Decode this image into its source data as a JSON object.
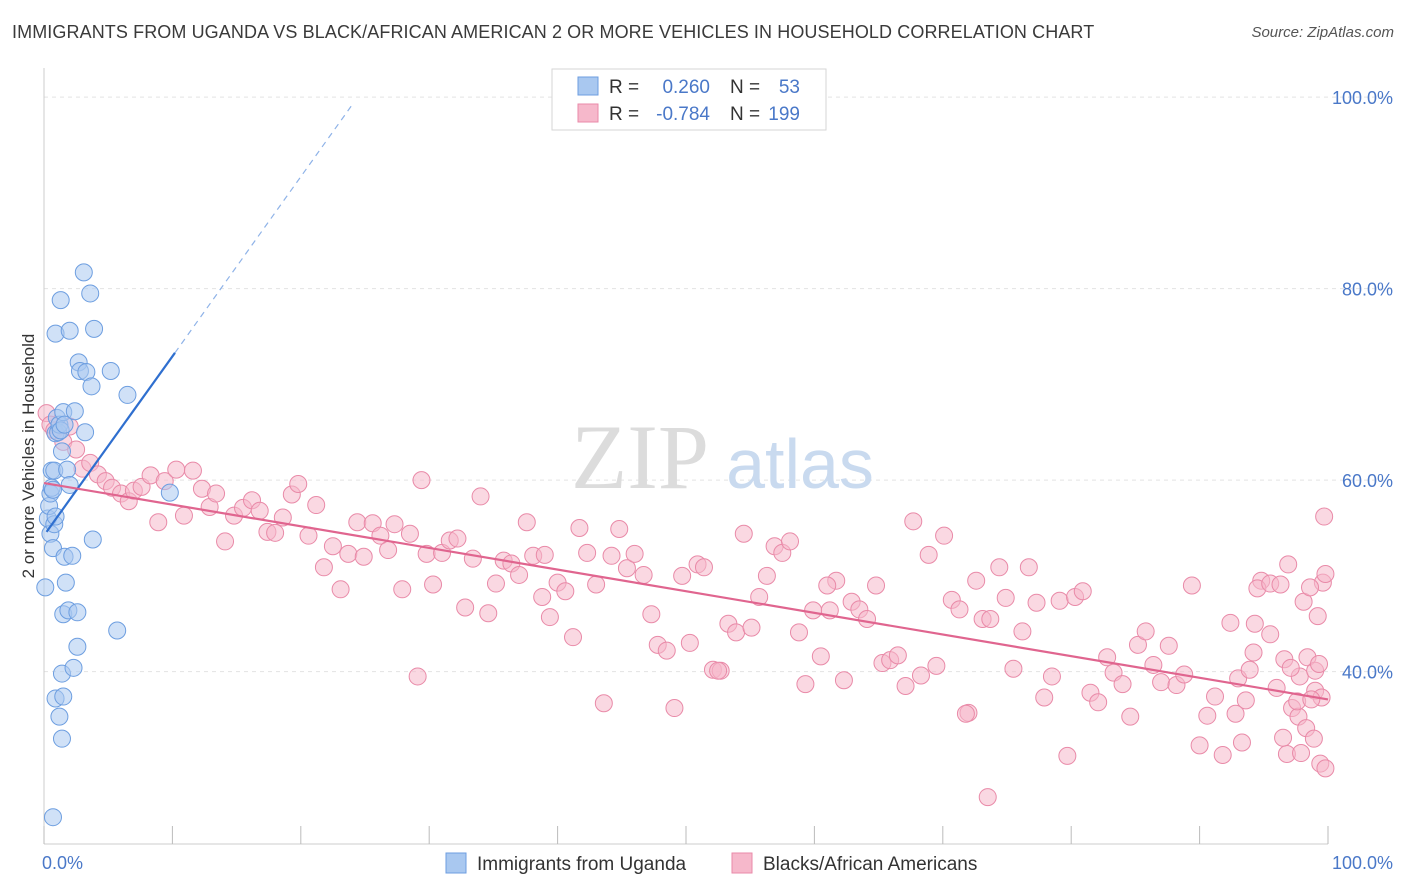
{
  "title": "IMMIGRANTS FROM UGANDA VS BLACK/AFRICAN AMERICAN 2 OR MORE VEHICLES IN HOUSEHOLD CORRELATION CHART",
  "source": "Source: ZipAtlas.com",
  "watermark": {
    "zip": "ZIP",
    "atlas": "atlas"
  },
  "colors": {
    "blue_fill": "#a9c8f0",
    "blue_stroke": "#6d9ee0",
    "blue_line": "#2f6fcf",
    "pink_fill": "#f6b8cb",
    "pink_stroke": "#e98aa8",
    "pink_line": "#e0658f",
    "axis_text": "#4a78c8",
    "grid": "#e3e3e3"
  },
  "legend": {
    "rows": [
      {
        "series": "blue",
        "r_label": "R =",
        "r_value": "0.260",
        "n_label": "N =",
        "n_value": "53"
      },
      {
        "series": "pink",
        "r_label": "R =",
        "r_value": "-0.784",
        "n_label": "N =",
        "n_value": "199"
      }
    ]
  },
  "bottom_legend": [
    "Immigrants from Uganda",
    "Blacks/African Americans"
  ],
  "chart_data": {
    "type": "scatter",
    "title": "IMMIGRANTS FROM UGANDA VS BLACK/AFRICAN AMERICAN 2 OR MORE VEHICLES IN HOUSEHOLD CORRELATION CHART",
    "xlabel": "",
    "ylabel": "2 or more Vehicles in Household",
    "xlim": [
      0,
      100
    ],
    "ylim": [
      22,
      102
    ],
    "x_tick_labels": [
      {
        "value": 0,
        "label": "0.0%"
      },
      {
        "value": 100,
        "label": "100.0%"
      }
    ],
    "y_tick_labels": [
      {
        "value": 40,
        "label": "40.0%"
      },
      {
        "value": 60,
        "label": "60.0%"
      },
      {
        "value": 80,
        "label": "80.0%"
      },
      {
        "value": 100,
        "label": "100.0%"
      }
    ],
    "x_minor_ticks": [
      0,
      10,
      20,
      30,
      40,
      50,
      60,
      70,
      80,
      90,
      100
    ],
    "series": [
      {
        "name": "Immigrants from Uganda",
        "color": "blue",
        "r": 0.26,
        "n": 53,
        "trend": {
          "x0": 0.2,
          "y0": 54.6,
          "x1": 10.2,
          "y1": 73.3,
          "dash_x1": 24.0,
          "dash_y1": 99.2
        },
        "points": [
          [
            0.1,
            48.8
          ],
          [
            0.3,
            56.0
          ],
          [
            0.4,
            57.3
          ],
          [
            0.5,
            58.6
          ],
          [
            0.6,
            61.0
          ],
          [
            0.5,
            54.4
          ],
          [
            0.7,
            52.9
          ],
          [
            0.8,
            55.4
          ],
          [
            0.9,
            56.2
          ],
          [
            0.6,
            59.2
          ],
          [
            0.7,
            59.0
          ],
          [
            0.8,
            61.0
          ],
          [
            0.9,
            64.9
          ],
          [
            1.0,
            66.5
          ],
          [
            1.1,
            65.0
          ],
          [
            1.2,
            65.8
          ],
          [
            1.3,
            65.2
          ],
          [
            1.4,
            63.0
          ],
          [
            1.5,
            67.1
          ],
          [
            1.6,
            65.8
          ],
          [
            0.9,
            75.3
          ],
          [
            1.3,
            78.8
          ],
          [
            2.0,
            75.6
          ],
          [
            3.1,
            81.7
          ],
          [
            3.6,
            79.5
          ],
          [
            3.9,
            75.8
          ],
          [
            2.7,
            72.3
          ],
          [
            2.8,
            71.4
          ],
          [
            3.3,
            71.3
          ],
          [
            3.7,
            69.8
          ],
          [
            5.2,
            71.4
          ],
          [
            6.5,
            68.9
          ],
          [
            2.4,
            67.2
          ],
          [
            3.2,
            65.0
          ],
          [
            1.8,
            61.1
          ],
          [
            1.6,
            52.0
          ],
          [
            1.7,
            49.3
          ],
          [
            2.2,
            52.1
          ],
          [
            3.8,
            53.8
          ],
          [
            1.5,
            46.0
          ],
          [
            1.9,
            46.4
          ],
          [
            2.6,
            46.2
          ],
          [
            2.6,
            42.6
          ],
          [
            1.4,
            39.8
          ],
          [
            2.3,
            40.4
          ],
          [
            0.9,
            37.2
          ],
          [
            1.5,
            37.4
          ],
          [
            1.2,
            35.3
          ],
          [
            1.4,
            33.0
          ],
          [
            0.7,
            24.8
          ],
          [
            5.7,
            44.3
          ],
          [
            9.8,
            58.7
          ],
          [
            2.0,
            59.5
          ]
        ]
      },
      {
        "name": "Blacks/African Americans",
        "color": "pink",
        "r": -0.784,
        "n": 199,
        "trend": {
          "x0": 0.0,
          "y0": 59.7,
          "x1": 100.0,
          "y1": 37.1
        },
        "points": [
          [
            0.2,
            67.0
          ],
          [
            0.5,
            65.8
          ],
          [
            0.8,
            65.2
          ],
          [
            1.5,
            64.0
          ],
          [
            2.0,
            65.6
          ],
          [
            2.5,
            63.2
          ],
          [
            3.0,
            61.2
          ],
          [
            3.6,
            61.8
          ],
          [
            4.2,
            60.6
          ],
          [
            4.8,
            59.9
          ],
          [
            5.3,
            59.2
          ],
          [
            6.0,
            58.6
          ],
          [
            6.6,
            57.8
          ],
          [
            7.0,
            58.9
          ],
          [
            7.6,
            59.3
          ],
          [
            8.3,
            60.5
          ],
          [
            8.9,
            55.6
          ],
          [
            9.4,
            59.9
          ],
          [
            10.3,
            61.1
          ],
          [
            10.9,
            56.3
          ],
          [
            11.6,
            61.0
          ],
          [
            12.3,
            59.1
          ],
          [
            12.9,
            57.2
          ],
          [
            13.4,
            58.6
          ],
          [
            14.1,
            53.6
          ],
          [
            14.8,
            56.3
          ],
          [
            15.5,
            57.1
          ],
          [
            16.2,
            57.9
          ],
          [
            16.8,
            56.8
          ],
          [
            17.4,
            54.6
          ],
          [
            18.0,
            54.5
          ],
          [
            18.6,
            56.1
          ],
          [
            19.3,
            58.5
          ],
          [
            19.8,
            59.6
          ],
          [
            20.6,
            54.2
          ],
          [
            21.2,
            57.4
          ],
          [
            21.8,
            50.9
          ],
          [
            22.5,
            53.1
          ],
          [
            23.1,
            48.6
          ],
          [
            23.7,
            52.3
          ],
          [
            24.4,
            55.6
          ],
          [
            24.9,
            52.0
          ],
          [
            25.6,
            55.5
          ],
          [
            26.2,
            54.2
          ],
          [
            26.8,
            52.7
          ],
          [
            27.3,
            55.4
          ],
          [
            27.9,
            48.6
          ],
          [
            28.5,
            54.4
          ],
          [
            29.1,
            39.5
          ],
          [
            29.8,
            52.3
          ],
          [
            30.3,
            49.1
          ],
          [
            31.0,
            52.4
          ],
          [
            31.6,
            53.7
          ],
          [
            32.2,
            53.9
          ],
          [
            32.8,
            46.7
          ],
          [
            33.4,
            51.8
          ],
          [
            34.0,
            58.3
          ],
          [
            34.6,
            46.1
          ],
          [
            35.2,
            49.2
          ],
          [
            35.8,
            51.6
          ],
          [
            36.4,
            51.3
          ],
          [
            37.0,
            50.1
          ],
          [
            37.6,
            55.6
          ],
          [
            38.1,
            52.1
          ],
          [
            38.8,
            47.8
          ],
          [
            39.4,
            45.7
          ],
          [
            40.0,
            49.3
          ],
          [
            40.6,
            48.4
          ],
          [
            41.2,
            43.6
          ],
          [
            41.7,
            55.0
          ],
          [
            42.3,
            52.4
          ],
          [
            43.0,
            49.1
          ],
          [
            43.6,
            36.7
          ],
          [
            44.2,
            52.1
          ],
          [
            44.8,
            54.9
          ],
          [
            45.4,
            50.8
          ],
          [
            46.0,
            52.3
          ],
          [
            46.7,
            50.1
          ],
          [
            47.3,
            46.0
          ],
          [
            47.8,
            42.8
          ],
          [
            48.5,
            42.2
          ],
          [
            49.1,
            36.2
          ],
          [
            49.7,
            50.0
          ],
          [
            50.3,
            43.0
          ],
          [
            50.9,
            51.2
          ],
          [
            51.4,
            50.9
          ],
          [
            52.1,
            40.2
          ],
          [
            52.7,
            40.1
          ],
          [
            53.3,
            45.0
          ],
          [
            53.9,
            44.1
          ],
          [
            54.5,
            54.4
          ],
          [
            55.1,
            44.6
          ],
          [
            55.7,
            47.8
          ],
          [
            56.3,
            50.0
          ],
          [
            56.9,
            53.1
          ],
          [
            57.5,
            52.4
          ],
          [
            58.1,
            53.6
          ],
          [
            58.8,
            44.1
          ],
          [
            59.3,
            38.7
          ],
          [
            59.9,
            46.4
          ],
          [
            60.5,
            41.6
          ],
          [
            61.2,
            46.4
          ],
          [
            61.7,
            49.5
          ],
          [
            62.3,
            39.1
          ],
          [
            62.9,
            47.3
          ],
          [
            63.5,
            46.5
          ],
          [
            64.1,
            45.5
          ],
          [
            64.8,
            49.0
          ],
          [
            65.3,
            40.9
          ],
          [
            65.9,
            41.2
          ],
          [
            66.5,
            41.7
          ],
          [
            67.1,
            38.5
          ],
          [
            67.7,
            55.7
          ],
          [
            68.3,
            39.6
          ],
          [
            68.9,
            52.2
          ],
          [
            69.5,
            40.6
          ],
          [
            70.1,
            54.2
          ],
          [
            70.7,
            47.5
          ],
          [
            71.3,
            46.5
          ],
          [
            72.0,
            35.7
          ],
          [
            72.6,
            49.5
          ],
          [
            73.1,
            45.5
          ],
          [
            73.7,
            45.5
          ],
          [
            74.4,
            50.9
          ],
          [
            74.9,
            47.7
          ],
          [
            75.5,
            40.3
          ],
          [
            76.2,
            44.2
          ],
          [
            76.7,
            50.9
          ],
          [
            77.3,
            47.2
          ],
          [
            77.9,
            37.3
          ],
          [
            78.5,
            39.5
          ],
          [
            79.1,
            47.4
          ],
          [
            79.7,
            31.2
          ],
          [
            80.3,
            47.8
          ],
          [
            80.9,
            48.4
          ],
          [
            81.5,
            37.8
          ],
          [
            82.1,
            36.8
          ],
          [
            82.8,
            41.5
          ],
          [
            83.3,
            39.9
          ],
          [
            84.0,
            38.7
          ],
          [
            84.6,
            35.3
          ],
          [
            85.2,
            42.8
          ],
          [
            85.8,
            44.2
          ],
          [
            86.4,
            40.7
          ],
          [
            87.0,
            38.9
          ],
          [
            87.6,
            42.7
          ],
          [
            88.2,
            38.6
          ],
          [
            88.8,
            39.7
          ],
          [
            89.4,
            49.0
          ],
          [
            90.0,
            32.3
          ],
          [
            90.6,
            35.4
          ],
          [
            91.2,
            37.4
          ],
          [
            91.8,
            31.3
          ],
          [
            92.4,
            45.1
          ],
          [
            93.0,
            39.3
          ],
          [
            93.6,
            37.0
          ],
          [
            94.2,
            42.0
          ],
          [
            94.8,
            49.5
          ],
          [
            95.5,
            43.9
          ],
          [
            96.0,
            38.3
          ],
          [
            96.6,
            41.3
          ],
          [
            97.2,
            36.2
          ],
          [
            97.8,
            39.5
          ],
          [
            98.4,
            41.5
          ],
          [
            99.0,
            40.1
          ],
          [
            99.6,
            49.3
          ],
          [
            99.0,
            38.0
          ],
          [
            99.5,
            37.3
          ],
          [
            94.5,
            48.7
          ],
          [
            95.5,
            49.2
          ],
          [
            96.3,
            49.1
          ],
          [
            97.1,
            40.4
          ],
          [
            97.7,
            35.3
          ],
          [
            98.3,
            34.1
          ],
          [
            98.9,
            33.0
          ],
          [
            99.4,
            30.4
          ],
          [
            99.8,
            29.9
          ],
          [
            96.8,
            31.4
          ],
          [
            97.6,
            36.9
          ],
          [
            98.7,
            37.1
          ],
          [
            92.8,
            35.6
          ],
          [
            93.9,
            40.2
          ],
          [
            94.3,
            45.0
          ],
          [
            93.3,
            32.6
          ],
          [
            96.5,
            33.1
          ],
          [
            97.9,
            31.5
          ],
          [
            99.3,
            40.8
          ],
          [
            98.1,
            47.3
          ],
          [
            96.9,
            51.2
          ],
          [
            98.6,
            48.8
          ],
          [
            99.2,
            45.8
          ],
          [
            99.7,
            56.2
          ],
          [
            99.8,
            50.2
          ],
          [
            73.5,
            26.9
          ],
          [
            71.8,
            35.6
          ],
          [
            61.0,
            49.0
          ],
          [
            52.5,
            40.1
          ],
          [
            39.0,
            52.2
          ],
          [
            29.4,
            60.0
          ]
        ]
      }
    ]
  }
}
